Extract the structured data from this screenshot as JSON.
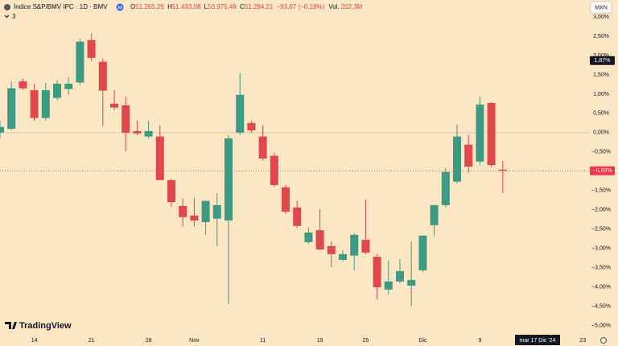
{
  "chart_data": {
    "type": "candlestick",
    "header": {
      "title": "Índice S&P/BMV IPC · 1D · BMV",
      "ohlc": [
        {
          "key": "O",
          "value": "51.265,29"
        },
        {
          "key": "H",
          "value": "51.433,08"
        },
        {
          "key": "L",
          "value": "50.975,49"
        },
        {
          "key": "C",
          "value": "51.284,21"
        }
      ],
      "change": "−93,07 (−0,18%)",
      "volume_key": "Vol.",
      "volume": "202,3M",
      "indicators_count": "3",
      "currency": "MXN",
      "brand": "TradingView"
    },
    "categories": [
      null,
      null,
      null,
      "14",
      null,
      null,
      null,
      null,
      "21",
      null,
      null,
      null,
      null,
      "28",
      null,
      null,
      null,
      "Nov",
      null,
      null,
      null,
      null,
      null,
      "11",
      null,
      null,
      null,
      null,
      "19",
      null,
      null,
      null,
      "25",
      null,
      null,
      null,
      null,
      "Dic",
      null,
      null,
      null,
      null,
      "9",
      null,
      null,
      null,
      null,
      null,
      null,
      null,
      null,
      "23"
    ],
    "crosshair_label": "mar 17 Dic '24",
    "open": [
      0,
      0.1,
      1.33,
      1.1,
      0.38,
      0.9,
      1.13,
      1.3,
      2.4,
      1.84,
      0.75,
      0.71,
      0.04,
      -0.1,
      -0.1,
      -1.23,
      -1.9,
      -2.15,
      -2.32,
      -2.23,
      -2.28,
      0,
      0.25,
      -0.1,
      -0.6,
      -1.42,
      -1.94,
      -2.84,
      -2.53,
      -2.94,
      -3.3,
      -3.19,
      -2.78,
      -3.22,
      -4.07,
      -3.86,
      -3.97,
      -3.57,
      -2.4,
      -1.88,
      -1.27,
      -0.31,
      -0.75,
      0.77,
      -0.96,
      null,
      null,
      null,
      null,
      null,
      null,
      null
    ],
    "high": [
      0.31,
      1.32,
      1.4,
      1.27,
      1.29,
      1.36,
      1.44,
      2.44,
      2.57,
      1.92,
      1.11,
      0.94,
      0.31,
      0.31,
      0.19,
      -1.19,
      -1.71,
      -1.69,
      -1.77,
      -1.57,
      -0.06,
      1.54,
      0.31,
      0.19,
      -0.52,
      -1.36,
      -1.77,
      -2.46,
      -1.98,
      -2.82,
      -3.05,
      -2.61,
      -1.73,
      -3.15,
      -3.32,
      -3.28,
      -2.82,
      -2.67,
      -1.88,
      -0.92,
      0.21,
      -0.06,
      0.94,
      0.79,
      -0.73,
      null,
      null,
      null,
      null,
      null,
      null,
      null
    ],
    "low": [
      -0.15,
      0.06,
      1.11,
      0.31,
      0.31,
      0.84,
      0.98,
      1.23,
      1.86,
      0.17,
      0.58,
      -0.48,
      -0.06,
      -0.15,
      -1.23,
      -1.92,
      -2.44,
      -2.44,
      -2.65,
      -2.94,
      -4.45,
      -0.06,
      0,
      -0.73,
      -1.4,
      -2.11,
      -2.48,
      -2.88,
      -3.05,
      -3.49,
      -3.34,
      -3.57,
      -3.15,
      -4.32,
      -4.2,
      -3.9,
      -4.49,
      -3.61,
      -2.69,
      -1.94,
      -1.32,
      -1.04,
      -0.84,
      -0.9,
      -1.57,
      null,
      null,
      null,
      null,
      null,
      null,
      null
    ],
    "close": [
      0.15,
      1.15,
      1.15,
      0.38,
      1.1,
      1.27,
      1.27,
      2.36,
      1.94,
      1.09,
      0.65,
      0,
      -0.02,
      0.04,
      -1.23,
      -1.8,
      -2.19,
      -2.28,
      -1.77,
      -1.88,
      -0.15,
      0.98,
      0.06,
      -0.67,
      -1.36,
      -2.05,
      -2.42,
      -2.59,
      -3.03,
      -3.15,
      -3.15,
      -2.65,
      -3.11,
      -4.01,
      -3.86,
      -3.59,
      -3.82,
      -2.67,
      -1.88,
      -1.02,
      -0.1,
      -0.88,
      0.73,
      -0.84,
      -0.99,
      null,
      null,
      null,
      null,
      null,
      null,
      null
    ],
    "up_color": "#3d9a83",
    "down_color": "#e0484d",
    "ylim": [
      -5.22,
      3.44
    ],
    "yticks": [
      {
        "value": 3,
        "label": "3,00%"
      },
      {
        "value": 2.5,
        "label": "2,50%"
      },
      {
        "value": 2,
        "label": "2,00%"
      },
      {
        "value": 1.5,
        "label": "1,50%"
      },
      {
        "value": 1,
        "label": "1,00%"
      },
      {
        "value": 0.5,
        "label": "0,50%"
      },
      {
        "value": 0,
        "label": "0,00%"
      },
      {
        "value": -0.5,
        "label": "−0,50%"
      },
      {
        "value": -1,
        "label": "−1,00%"
      },
      {
        "value": -1.5,
        "label": "−1,50%"
      },
      {
        "value": -2,
        "label": "−2,00%"
      },
      {
        "value": -2.5,
        "label": "−2,50%"
      },
      {
        "value": -3,
        "label": "−3,00%"
      },
      {
        "value": -3.5,
        "label": "−3,50%"
      },
      {
        "value": -4,
        "label": "−4,00%"
      },
      {
        "value": -4.5,
        "label": "−4,50%"
      },
      {
        "value": -5,
        "label": "−5,00%"
      }
    ],
    "markers": [
      {
        "value": 1.87,
        "label": "1,87%",
        "color": "#131722"
      },
      {
        "value": -0.99,
        "label": "−0,99%",
        "color": "#f23645"
      }
    ]
  }
}
